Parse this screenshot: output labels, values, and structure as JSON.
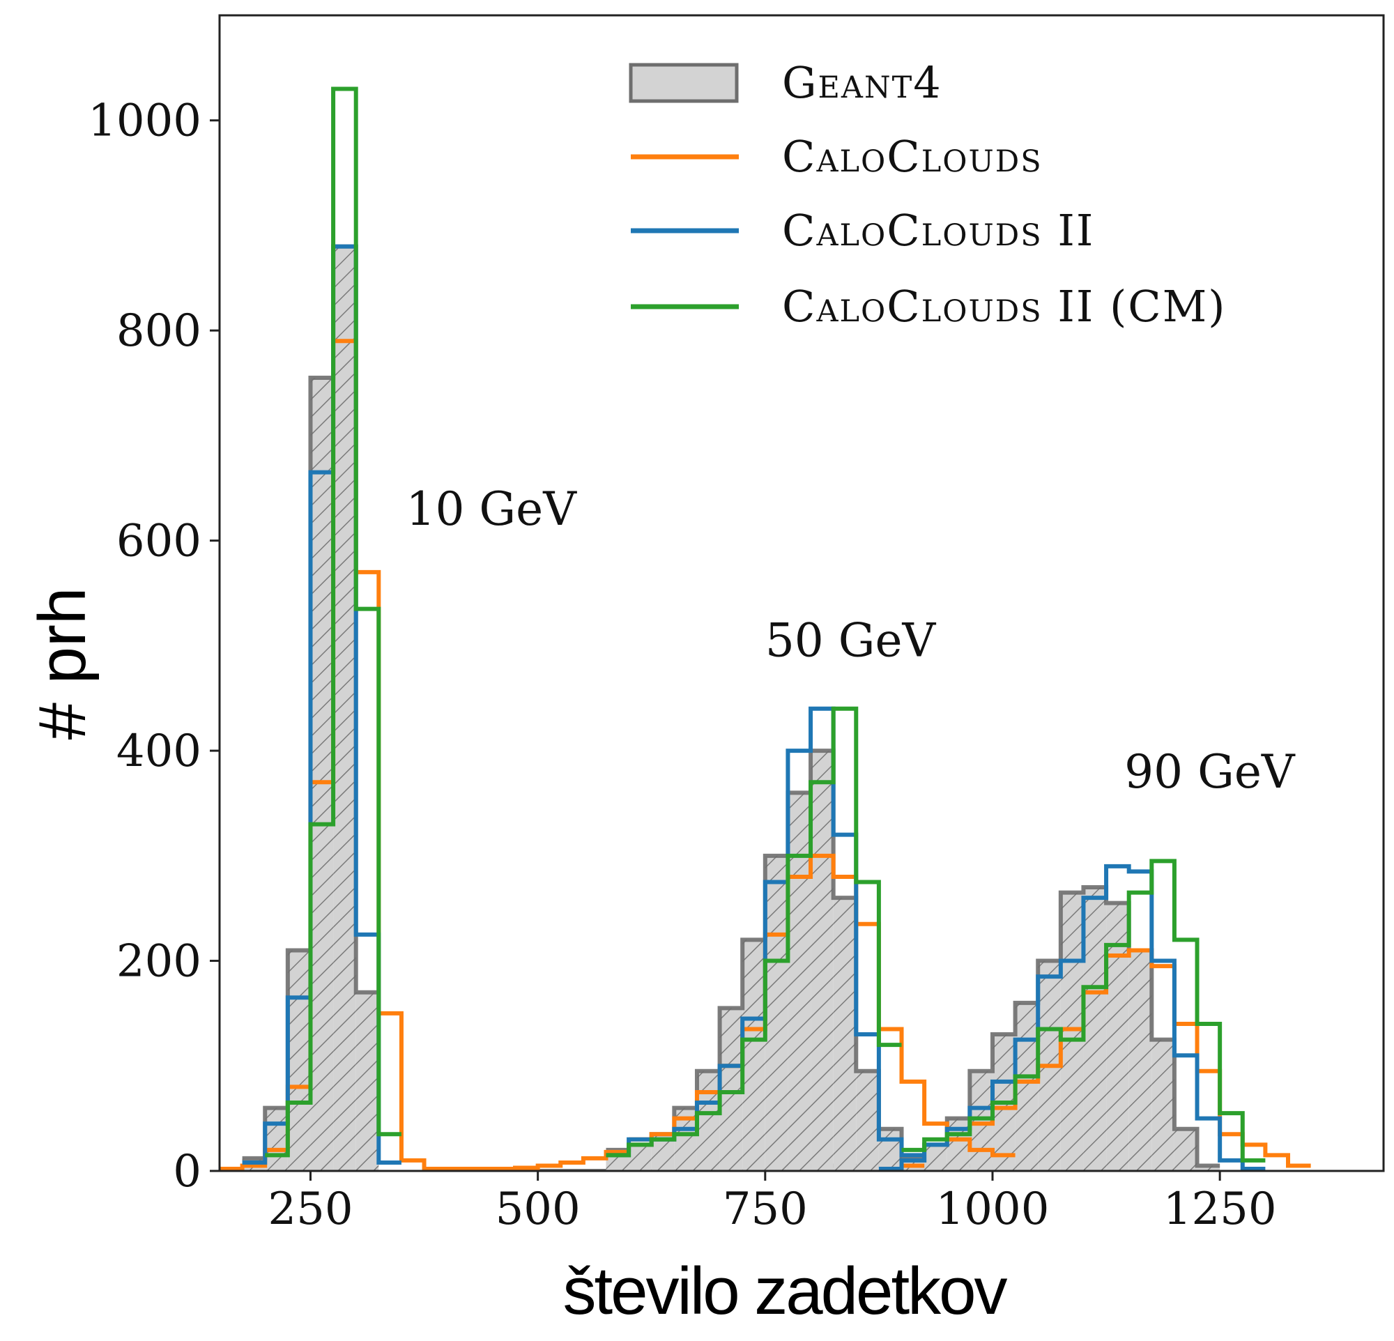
{
  "chart_data": {
    "type": "histogram",
    "xlabel": "število zadetkov",
    "ylabel": "# prh",
    "xlim": [
      150,
      1430
    ],
    "ylim": [
      0,
      1100
    ],
    "xticks": [
      250,
      500,
      750,
      1000,
      1250
    ],
    "yticks": [
      0,
      200,
      400,
      600,
      800,
      1000
    ],
    "grid": false,
    "legend_position": "top-right",
    "annotations": [
      {
        "text": "10 GeV",
        "x": 355,
        "y": 615
      },
      {
        "text": "50 GeV",
        "x": 750,
        "y": 490
      },
      {
        "text": "90 GeV",
        "x": 1145,
        "y": 365
      }
    ],
    "series": [
      {
        "name": "Geant4",
        "style": "filled",
        "color": "#6e6e6e",
        "fill": "#d3d3d3",
        "hatch": true,
        "bins": [
          {
            "start": 175,
            "width": 25,
            "values": [
              12,
              60,
              210,
              755,
              880,
              170
            ]
          },
          {
            "start": 475,
            "width": 25,
            "values": [
              0,
              0,
              0,
              0,
              0,
              0,
              0,
              0,
              0,
              0,
              0,
              0,
              5,
              5,
              5,
              5,
              5,
              5,
              5,
              5,
              5,
              5
            ]
          },
          {
            "start": 575,
            "width": 25,
            "values": [
              20,
              25,
              35,
              60,
              95,
              155,
              220,
              300,
              360,
              400,
              260,
              95,
              40,
              12
            ]
          },
          {
            "start": 900,
            "width": 25,
            "values": [
              10,
              25,
              50,
              95,
              130,
              160,
              200,
              265,
              270,
              255,
              210,
              125,
              40,
              5
            ]
          }
        ]
      },
      {
        "name": "CaloClouds",
        "style": "step",
        "color": "#ff7f0e",
        "bins": [
          {
            "start": 150,
            "width": 25,
            "values": [
              2,
              5,
              20,
              80,
              370,
              790,
              570,
              150,
              10,
              2,
              2,
              2,
              2,
              3,
              5,
              8,
              12,
              18
            ]
          },
          {
            "start": 600,
            "width": 25,
            "values": [
              30,
              35,
              50,
              75,
              100,
              135,
              225,
              280,
              300,
              280,
              235,
              135,
              85,
              45,
              30,
              20,
              15
            ]
          },
          {
            "start": 900,
            "width": 25,
            "values": [
              5
            ]
          },
          {
            "start": 975,
            "width": 25,
            "values": [
              45,
              60,
              85,
              100,
              135,
              170,
              205,
              210,
              195,
              140,
              95,
              35,
              25,
              15,
              5
            ]
          }
        ]
      },
      {
        "name": "CaloClouds II",
        "style": "step",
        "color": "#1f77b4",
        "bins": [
          {
            "start": 175,
            "width": 25,
            "values": [
              8,
              45,
              165,
              665,
              880,
              225,
              8
            ]
          },
          {
            "start": 575,
            "width": 25,
            "values": [
              15,
              30,
              30,
              40,
              65,
              100,
              145,
              275,
              400,
              440,
              320,
              130,
              30,
              15
            ]
          },
          {
            "start": 875,
            "width": 25,
            "values": [
              2,
              10,
              25,
              40,
              60,
              85,
              125,
              185,
              200,
              260,
              290,
              285,
              200,
              110,
              50,
              10,
              2
            ]
          }
        ]
      },
      {
        "name": "CaloClouds II (CM)",
        "style": "step",
        "color": "#2ca02c",
        "bins": [
          {
            "start": 200,
            "width": 25,
            "values": [
              15,
              65,
              330,
              1030,
              535,
              35
            ]
          },
          {
            "start": 575,
            "width": 25,
            "values": [
              15,
              25,
              30,
              35,
              55,
              75,
              125,
              200,
              300,
              370,
              440,
              275,
              120
            ]
          },
          {
            "start": 900,
            "width": 25,
            "values": [
              20,
              30,
              35,
              50,
              65,
              90,
              135,
              125,
              175,
              215,
              265,
              295,
              220,
              140,
              55,
              10
            ]
          }
        ]
      }
    ]
  }
}
